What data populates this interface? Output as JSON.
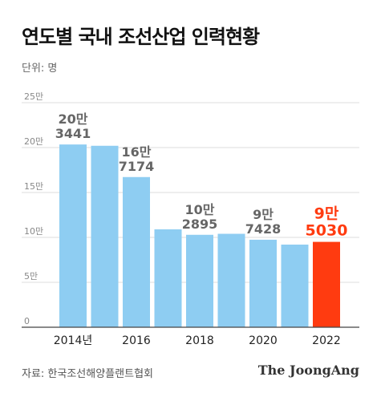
{
  "title": "연도별 국내 조선산업 인력현황",
  "unit_label": "단위: 명",
  "source": "자료: 한국조선해양플랜트협회",
  "brand": "The JoongAng",
  "chart_data": {
    "type": "bar",
    "categories": [
      "2014년",
      "2015",
      "2016",
      "2017",
      "2018",
      "2019",
      "2020",
      "2021",
      "2022"
    ],
    "x_tick_labels": [
      "2014년",
      "",
      "2016",
      "",
      "2018",
      "",
      "2020",
      "",
      "2022"
    ],
    "values": [
      203441,
      202000,
      167174,
      109000,
      102895,
      104000,
      97428,
      92000,
      95030
    ],
    "data_labels": [
      {
        "index": 0,
        "lines": [
          "20만",
          "3441"
        ]
      },
      {
        "index": 2,
        "lines": [
          "16만",
          "7174"
        ]
      },
      {
        "index": 4,
        "lines": [
          "10만",
          "2895"
        ]
      },
      {
        "index": 6,
        "lines": [
          "9만",
          "7428"
        ]
      },
      {
        "index": 8,
        "lines": [
          "9만",
          "5030"
        ],
        "highlight": true
      }
    ],
    "ylim": [
      0,
      250000
    ],
    "y_ticks": [
      {
        "value": 0,
        "label": "0"
      },
      {
        "value": 50000,
        "label": "5만"
      },
      {
        "value": 100000,
        "label": "10만"
      },
      {
        "value": 150000,
        "label": "15만"
      },
      {
        "value": 200000,
        "label": "20만"
      },
      {
        "value": 250000,
        "label": "25만"
      }
    ],
    "grid": true,
    "colors": {
      "bar": "#8ecdf2",
      "highlight": "#ff3b10",
      "grid": "#dddddd",
      "axis": "#444444"
    }
  }
}
